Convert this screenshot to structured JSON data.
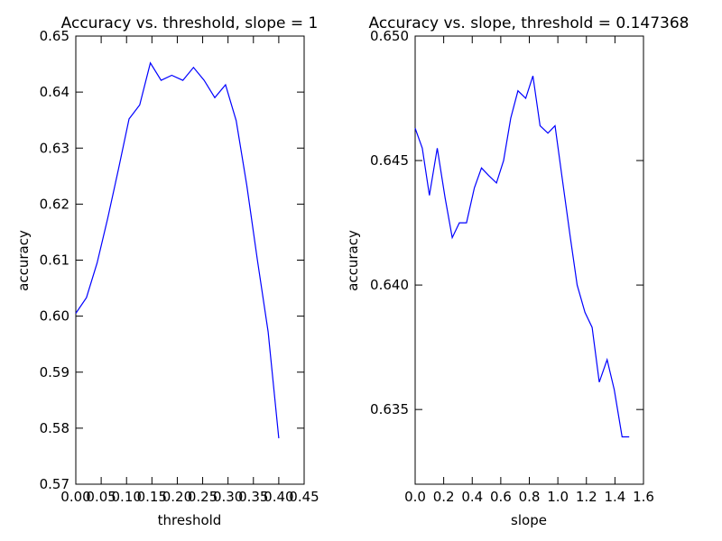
{
  "chart_data": [
    {
      "type": "line",
      "title": "Accuracy vs. threshold, slope = 1",
      "xlabel": "threshold",
      "ylabel": "accuracy",
      "xlim": [
        0.0,
        0.45
      ],
      "ylim": [
        0.57,
        0.65
      ],
      "xticks": [
        "0.00",
        "0.05",
        "0.10",
        "0.15",
        "0.20",
        "0.25",
        "0.30",
        "0.35",
        "0.40",
        "0.45"
      ],
      "yticks": [
        "0.57",
        "0.58",
        "0.59",
        "0.60",
        "0.61",
        "0.62",
        "0.63",
        "0.64",
        "0.65"
      ],
      "grid": false,
      "line_color": "#0000ff",
      "series": [
        {
          "x": [
            0.0,
            0.021,
            0.042,
            0.063,
            0.084,
            0.105,
            0.126,
            0.147,
            0.168,
            0.189,
            0.211,
            0.232,
            0.253,
            0.274,
            0.295,
            0.316,
            0.337,
            0.358,
            0.379,
            0.4
          ],
          "y": [
            0.6005,
            0.6033,
            0.6095,
            0.6175,
            0.6262,
            0.6352,
            0.6377,
            0.6452,
            0.6421,
            0.643,
            0.6421,
            0.6444,
            0.6421,
            0.639,
            0.6413,
            0.6349,
            0.6233,
            0.6099,
            0.5972,
            0.5782
          ]
        }
      ]
    },
    {
      "type": "line",
      "title": "Accuracy vs. slope, threshold = 0.147368",
      "xlabel": "slope",
      "ylabel": "accuracy",
      "xlim": [
        0.0,
        1.6
      ],
      "ylim": [
        0.632,
        0.65
      ],
      "xticks": [
        "0.0",
        "0.2",
        "0.4",
        "0.6",
        "0.8",
        "1.0",
        "1.2",
        "1.4",
        "1.6"
      ],
      "yticks": [
        "0.635",
        "0.640",
        "0.645",
        "0.650"
      ],
      "grid": false,
      "line_color": "#0000ff",
      "series": [
        {
          "x": [
            0.0,
            0.05,
            0.1,
            0.155,
            0.21,
            0.26,
            0.31,
            0.36,
            0.415,
            0.465,
            0.515,
            0.57,
            0.62,
            0.67,
            0.72,
            0.775,
            0.825,
            0.875,
            0.93,
            0.98,
            1.03,
            1.085,
            1.135,
            1.19,
            1.24,
            1.29,
            1.345,
            1.395,
            1.45,
            1.5
          ],
          "y": [
            0.6463,
            0.6455,
            0.6436,
            0.6455,
            0.6435,
            0.6419,
            0.6425,
            0.6425,
            0.6439,
            0.6447,
            0.6444,
            0.6441,
            0.645,
            0.6467,
            0.6478,
            0.6475,
            0.6484,
            0.6464,
            0.6461,
            0.6464,
            0.6443,
            0.642,
            0.64,
            0.6389,
            0.6383,
            0.6361,
            0.637,
            0.6358,
            0.6339,
            0.6339
          ]
        }
      ]
    }
  ]
}
